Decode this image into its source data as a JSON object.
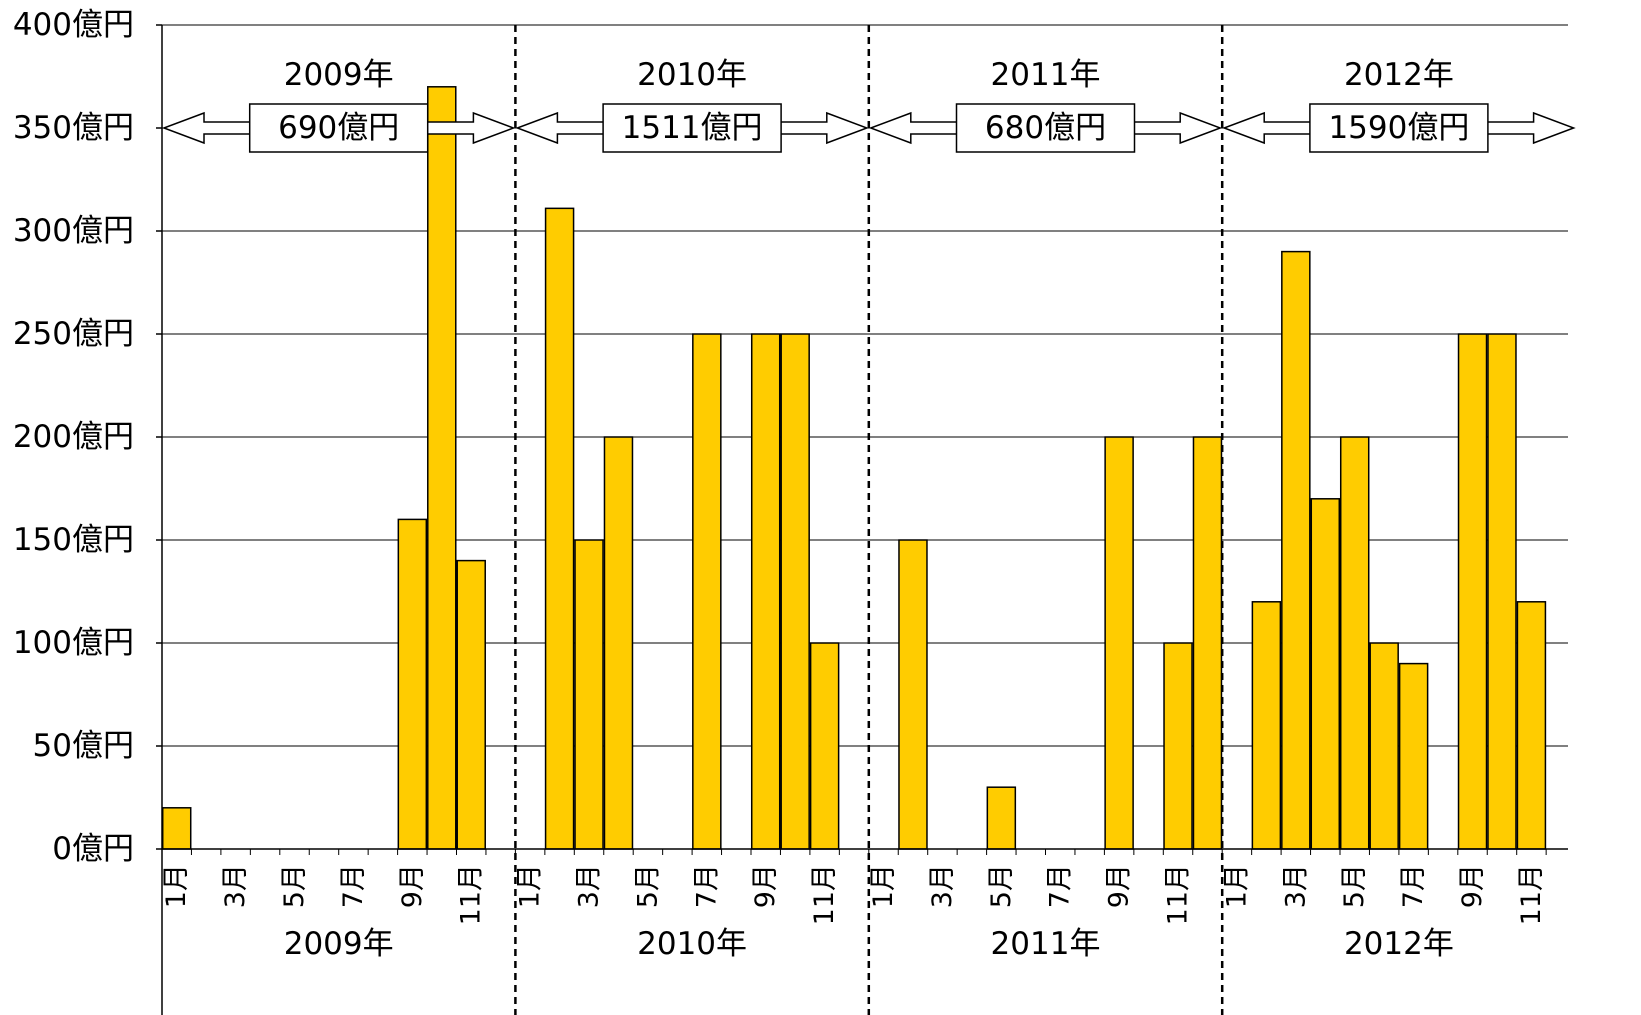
{
  "chart_data": {
    "type": "bar",
    "y_unit": "億円",
    "ylim": [
      0,
      400
    ],
    "y_ticks": [
      "0億円",
      "50億円",
      "100億円",
      "150億円",
      "200億円",
      "250億円",
      "300億円",
      "350億円",
      "400億円"
    ],
    "grid": true,
    "bar_color": "#FFCC00",
    "years": [
      {
        "label": "2009年",
        "total_label": "690億円",
        "month_labels": [
          "1月",
          "3月",
          "5月",
          "7月",
          "9月",
          "11月"
        ],
        "values": [
          20,
          0,
          0,
          0,
          0,
          0,
          0,
          0,
          160,
          370,
          140,
          0
        ]
      },
      {
        "label": "2010年",
        "total_label": "1511億円",
        "month_labels": [
          "1月",
          "3月",
          "5月",
          "7月",
          "9月",
          "11月"
        ],
        "values": [
          0,
          311,
          150,
          200,
          0,
          0,
          250,
          0,
          250,
          250,
          100,
          0
        ]
      },
      {
        "label": "2011年",
        "total_label": "680億円",
        "month_labels": [
          "1月",
          "3月",
          "5月",
          "7月",
          "9月",
          "11月"
        ],
        "values": [
          0,
          150,
          0,
          0,
          30,
          0,
          0,
          0,
          200,
          0,
          100,
          200
        ]
      },
      {
        "label": "2012年",
        "total_label": "1590億円",
        "month_labels": [
          "1月",
          "3月",
          "5月",
          "7月",
          "9月",
          "11月"
        ],
        "values": [
          0,
          120,
          290,
          170,
          200,
          100,
          90,
          0,
          250,
          250,
          120,
          0
        ]
      }
    ]
  }
}
